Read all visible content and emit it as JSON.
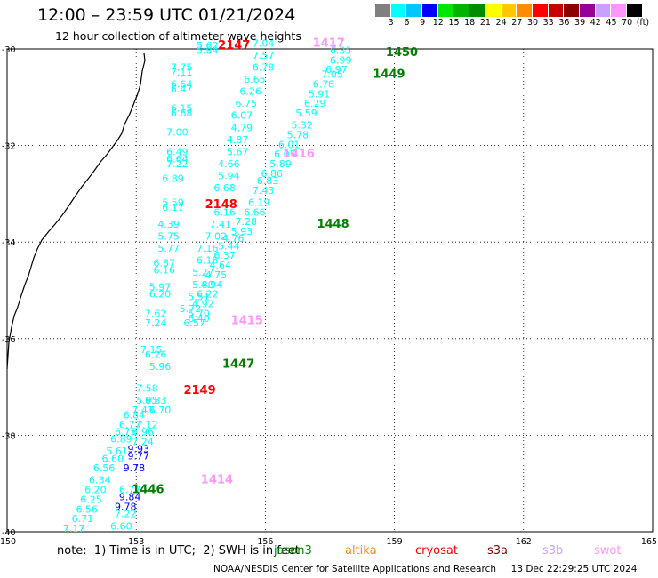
{
  "title": "12:00 – 23:59 UTC 01/21/2024",
  "subtitle": "12 hour collection of altimeter wave heights",
  "colorbar": {
    "labels": [
      "3",
      "6",
      "9",
      "12",
      "15",
      "18",
      "21",
      "24",
      "27",
      "30",
      "33",
      "36",
      "39",
      "42",
      "45",
      "70"
    ],
    "unit": "(ft)",
    "colors": [
      "#808080",
      "#00ffff",
      "#00c8ff",
      "#0000ff",
      "#00e600",
      "#00b400",
      "#008c00",
      "#ffff00",
      "#ffc800",
      "#ff8c00",
      "#ff0000",
      "#c80000",
      "#8c0000",
      "#960096",
      "#c8a0ff",
      "#ff96ff",
      "#000000"
    ]
  },
  "axes": {
    "lon_labels": [
      "150",
      "153",
      "156",
      "159",
      "162",
      "165"
    ],
    "lat_labels": [
      "-30",
      "-32",
      "-34",
      "-36",
      "-38",
      "-40"
    ]
  },
  "note": "note:  1) Time is in UTC;  2) SWH is in feet",
  "satellites": [
    {
      "name": "jason3",
      "color": "#008000"
    },
    {
      "name": "altika",
      "color": "#ff8c00"
    },
    {
      "name": "cryosat",
      "color": "#ff0000"
    },
    {
      "name": "s3a",
      "color": "#8b0000"
    },
    {
      "name": "s3b",
      "color": "#c8a0ff"
    },
    {
      "name": "swot",
      "color": "#ff96ff"
    }
  ],
  "credit": "NOAA/NESDIS Center for Satellite Applications and Research     13 Dec 22:29:25 UTC 2024",
  "time_labels": [
    {
      "text": "2147",
      "color": "#ff0000",
      "lon": 154.9,
      "lat": -30.0
    },
    {
      "text": "1417",
      "color": "#ff96ff",
      "lon": 157.1,
      "lat": -29.95
    },
    {
      "text": "1450",
      "color": "#008000",
      "lon": 158.8,
      "lat": -30.15
    },
    {
      "text": "1449",
      "color": "#008000",
      "lon": 158.5,
      "lat": -30.6
    },
    {
      "text": "1416",
      "color": "#ff96ff",
      "lon": 156.4,
      "lat": -32.25
    },
    {
      "text": "2148",
      "color": "#ff0000",
      "lon": 154.6,
      "lat": -33.3
    },
    {
      "text": "1448",
      "color": "#008000",
      "lon": 157.2,
      "lat": -33.7
    },
    {
      "text": "1415",
      "color": "#ff96ff",
      "lon": 155.2,
      "lat": -35.7
    },
    {
      "text": "1447",
      "color": "#008000",
      "lon": 155.0,
      "lat": -36.6
    },
    {
      "text": "2149",
      "color": "#ff0000",
      "lon": 154.1,
      "lat": -37.15
    },
    {
      "text": "1414",
      "color": "#ff96ff",
      "lon": 154.5,
      "lat": -39.0
    },
    {
      "text": "1446",
      "color": "#008000",
      "lon": 152.9,
      "lat": -39.2
    }
  ],
  "wave_heights": [
    {
      "v": "5.62",
      "lon": 154.4,
      "lat": -30.0,
      "c": "#00ffff"
    },
    {
      "v": "5.84",
      "lon": 154.4,
      "lat": -30.1,
      "c": "#00ffff"
    },
    {
      "v": "7.04",
      "lon": 155.7,
      "lat": -29.95,
      "c": "#00ffff"
    },
    {
      "v": "7.57",
      "lon": 155.7,
      "lat": -30.2,
      "c": "#00ffff"
    },
    {
      "v": "6.78",
      "lon": 155.7,
      "lat": -30.45,
      "c": "#00ffff"
    },
    {
      "v": "6.65",
      "lon": 155.5,
      "lat": -30.7,
      "c": "#00ffff"
    },
    {
      "v": "6.26",
      "lon": 155.4,
      "lat": -30.95,
      "c": "#00ffff"
    },
    {
      "v": "6.75",
      "lon": 155.3,
      "lat": -31.2,
      "c": "#00ffff"
    },
    {
      "v": "6.07",
      "lon": 155.2,
      "lat": -31.45,
      "c": "#00ffff"
    },
    {
      "v": "4.79",
      "lon": 155.2,
      "lat": -31.7,
      "c": "#00ffff"
    },
    {
      "v": "4.87",
      "lon": 155.1,
      "lat": -31.95,
      "c": "#00ffff"
    },
    {
      "v": "5.67",
      "lon": 155.1,
      "lat": -32.2,
      "c": "#00ffff"
    },
    {
      "v": "4.66",
      "lon": 154.9,
      "lat": -32.45,
      "c": "#00ffff"
    },
    {
      "v": "5.94",
      "lon": 154.9,
      "lat": -32.7,
      "c": "#00ffff"
    },
    {
      "v": "6.68",
      "lon": 154.8,
      "lat": -32.95,
      "c": "#00ffff"
    },
    {
      "v": "6.16",
      "lon": 154.8,
      "lat": -33.45,
      "c": "#00ffff"
    },
    {
      "v": "7.41",
      "lon": 154.7,
      "lat": -33.7,
      "c": "#00ffff"
    },
    {
      "v": "7.02",
      "lon": 154.6,
      "lat": -33.95,
      "c": "#00ffff"
    },
    {
      "v": "7.16",
      "lon": 154.4,
      "lat": -34.2,
      "c": "#00ffff"
    },
    {
      "v": "6.16",
      "lon": 154.4,
      "lat": -34.45,
      "c": "#00ffff"
    },
    {
      "v": "5.27",
      "lon": 154.3,
      "lat": -34.7,
      "c": "#00ffff"
    },
    {
      "v": "5.80",
      "lon": 154.3,
      "lat": -34.95,
      "c": "#00ffff"
    },
    {
      "v": "5.51",
      "lon": 154.2,
      "lat": -35.2,
      "c": "#00ffff"
    },
    {
      "v": "5.72",
      "lon": 154.0,
      "lat": -35.45,
      "c": "#00ffff"
    },
    {
      "v": "5.70",
      "lon": 154.2,
      "lat": -35.55,
      "c": "#00ffff"
    },
    {
      "v": "6.57",
      "lon": 154.1,
      "lat": -35.75,
      "c": "#00ffff"
    },
    {
      "v": "7.75",
      "lon": 153.8,
      "lat": -30.45,
      "c": "#00ffff"
    },
    {
      "v": "7.11",
      "lon": 153.8,
      "lat": -30.55,
      "c": "#00ffff"
    },
    {
      "v": "6.64",
      "lon": 153.8,
      "lat": -30.8,
      "c": "#00ffff"
    },
    {
      "v": "6.47",
      "lon": 153.8,
      "lat": -30.9,
      "c": "#00ffff"
    },
    {
      "v": "6.15",
      "lon": 153.8,
      "lat": -31.3,
      "c": "#00ffff"
    },
    {
      "v": "6.68",
      "lon": 153.8,
      "lat": -31.4,
      "c": "#00ffff"
    },
    {
      "v": "7.00",
      "lon": 153.7,
      "lat": -31.8,
      "c": "#00ffff"
    },
    {
      "v": "6.49",
      "lon": 153.7,
      "lat": -32.2,
      "c": "#00ffff"
    },
    {
      "v": "6.64",
      "lon": 153.7,
      "lat": -32.35,
      "c": "#00ffff"
    },
    {
      "v": "7.22",
      "lon": 153.7,
      "lat": -32.45,
      "c": "#00ffff"
    },
    {
      "v": "6.89",
      "lon": 153.6,
      "lat": -32.75,
      "c": "#00ffff"
    },
    {
      "v": "5.59",
      "lon": 153.6,
      "lat": -33.25,
      "c": "#00ffff"
    },
    {
      "v": "6.17",
      "lon": 153.6,
      "lat": -33.35,
      "c": "#00ffff"
    },
    {
      "v": "4.39",
      "lon": 153.5,
      "lat": -33.7,
      "c": "#00ffff"
    },
    {
      "v": "5.75",
      "lon": 153.5,
      "lat": -33.95,
      "c": "#00ffff"
    },
    {
      "v": "5.77",
      "lon": 153.5,
      "lat": -34.2,
      "c": "#00ffff"
    },
    {
      "v": "6.87",
      "lon": 153.4,
      "lat": -34.5,
      "c": "#00ffff"
    },
    {
      "v": "6.16",
      "lon": 153.4,
      "lat": -34.65,
      "c": "#00ffff"
    },
    {
      "v": "5.97",
      "lon": 153.3,
      "lat": -35.0,
      "c": "#00ffff"
    },
    {
      "v": "6.20",
      "lon": 153.3,
      "lat": -35.15,
      "c": "#00ffff"
    },
    {
      "v": "7.62",
      "lon": 153.2,
      "lat": -35.55,
      "c": "#00ffff"
    },
    {
      "v": "7.24",
      "lon": 153.2,
      "lat": -35.75,
      "c": "#00ffff"
    },
    {
      "v": "7.15",
      "lon": 153.1,
      "lat": -36.3,
      "c": "#00ffff"
    },
    {
      "v": "6.26",
      "lon": 153.2,
      "lat": -36.4,
      "c": "#00ffff"
    },
    {
      "v": "5.96",
      "lon": 153.3,
      "lat": -36.65,
      "c": "#00ffff"
    },
    {
      "v": "7.58",
      "lon": 153.0,
      "lat": -37.1,
      "c": "#00ffff"
    },
    {
      "v": "5.95",
      "lon": 153.0,
      "lat": -37.35,
      "c": "#00ffff"
    },
    {
      "v": "6.83",
      "lon": 153.2,
      "lat": -37.35,
      "c": "#00ffff"
    },
    {
      "v": "6.70",
      "lon": 153.3,
      "lat": -37.55,
      "c": "#00ffff"
    },
    {
      "v": "7.43",
      "lon": 152.9,
      "lat": -37.55,
      "c": "#00ffff"
    },
    {
      "v": "6.84",
      "lon": 152.7,
      "lat": -37.65,
      "c": "#00ffff"
    },
    {
      "v": "6.77",
      "lon": 152.6,
      "lat": -37.85,
      "c": "#00ffff"
    },
    {
      "v": "7.12",
      "lon": 153.0,
      "lat": -37.85,
      "c": "#00ffff"
    },
    {
      "v": "6.75",
      "lon": 152.5,
      "lat": -38.0,
      "c": "#00ffff"
    },
    {
      "v": "6.96",
      "lon": 152.9,
      "lat": -38.0,
      "c": "#00ffff"
    },
    {
      "v": "6.89",
      "lon": 152.4,
      "lat": -38.15,
      "c": "#00ffff"
    },
    {
      "v": "7.24",
      "lon": 152.9,
      "lat": -38.2,
      "c": "#00ffff"
    },
    {
      "v": "5.61",
      "lon": 152.3,
      "lat": -38.4,
      "c": "#00ffff"
    },
    {
      "v": "9.93",
      "lon": 152.8,
      "lat": -38.35,
      "c": "#0000ff"
    },
    {
      "v": "6.60",
      "lon": 152.2,
      "lat": -38.55,
      "c": "#00ffff"
    },
    {
      "v": "9.77",
      "lon": 152.8,
      "lat": -38.5,
      "c": "#0000ff"
    },
    {
      "v": "6.56",
      "lon": 152.0,
      "lat": -38.75,
      "c": "#00ffff"
    },
    {
      "v": "9.78",
      "lon": 152.7,
      "lat": -38.75,
      "c": "#0000ff"
    },
    {
      "v": "6.34",
      "lon": 151.9,
      "lat": -39.0,
      "c": "#00ffff"
    },
    {
      "v": "6.20",
      "lon": 151.8,
      "lat": -39.2,
      "c": "#00ffff"
    },
    {
      "v": "6.77",
      "lon": 152.6,
      "lat": -39.2,
      "c": "#00ffff"
    },
    {
      "v": "6.25",
      "lon": 151.7,
      "lat": -39.4,
      "c": "#00ffff"
    },
    {
      "v": "9.84",
      "lon": 152.6,
      "lat": -39.35,
      "c": "#0000ff"
    },
    {
      "v": "6.56",
      "lon": 151.6,
      "lat": -39.6,
      "c": "#00ffff"
    },
    {
      "v": "9.78",
      "lon": 152.5,
      "lat": -39.55,
      "c": "#0000ff"
    },
    {
      "v": "6.71",
      "lon": 151.5,
      "lat": -39.8,
      "c": "#00ffff"
    },
    {
      "v": "7.22",
      "lon": 152.5,
      "lat": -39.7,
      "c": "#00ffff"
    },
    {
      "v": "7.17",
      "lon": 151.3,
      "lat": -40.0,
      "c": "#00ffff"
    },
    {
      "v": "6.60",
      "lon": 152.4,
      "lat": -39.95,
      "c": "#00ffff"
    },
    {
      "v": "6.35",
      "lon": 157.5,
      "lat": -30.1,
      "c": "#00ffff"
    },
    {
      "v": "6.99",
      "lon": 157.5,
      "lat": -30.3,
      "c": "#00ffff"
    },
    {
      "v": "6.97",
      "lon": 157.4,
      "lat": -30.5,
      "c": "#00ffff"
    },
    {
      "v": "7.05",
      "lon": 157.3,
      "lat": -30.6,
      "c": "#00ffff"
    },
    {
      "v": "6.78",
      "lon": 157.1,
      "lat": -30.8,
      "c": "#00ffff"
    },
    {
      "v": "5.91",
      "lon": 157.0,
      "lat": -31.0,
      "c": "#00ffff"
    },
    {
      "v": "6.29",
      "lon": 156.9,
      "lat": -31.2,
      "c": "#00ffff"
    },
    {
      "v": "5.59",
      "lon": 156.7,
      "lat": -31.4,
      "c": "#00ffff"
    },
    {
      "v": "5.32",
      "lon": 156.6,
      "lat": -31.65,
      "c": "#00ffff"
    },
    {
      "v": "5.78",
      "lon": 156.5,
      "lat": -31.85,
      "c": "#00ffff"
    },
    {
      "v": "6.01",
      "lon": 156.3,
      "lat": -32.05,
      "c": "#00ffff"
    },
    {
      "v": "6.05",
      "lon": 156.2,
      "lat": -32.25,
      "c": "#00ffff"
    },
    {
      "v": "5.89",
      "lon": 156.1,
      "lat": -32.45,
      "c": "#00ffff"
    },
    {
      "v": "6.86",
      "lon": 155.9,
      "lat": -32.65,
      "c": "#00ffff"
    },
    {
      "v": "6.83",
      "lon": 155.8,
      "lat": -32.8,
      "c": "#00ffff"
    },
    {
      "v": "7.43",
      "lon": 155.7,
      "lat": -33.0,
      "c": "#00ffff"
    },
    {
      "v": "6.19",
      "lon": 155.6,
      "lat": -33.25,
      "c": "#00ffff"
    },
    {
      "v": "6.66",
      "lon": 155.5,
      "lat": -33.45,
      "c": "#00ffff"
    },
    {
      "v": "7.28",
      "lon": 155.3,
      "lat": -33.65,
      "c": "#00ffff"
    },
    {
      "v": "5.93",
      "lon": 155.2,
      "lat": -33.85,
      "c": "#00ffff"
    },
    {
      "v": "4.76",
      "lon": 155.0,
      "lat": -34.0,
      "c": "#00ffff"
    },
    {
      "v": "5.44",
      "lon": 154.9,
      "lat": -34.15,
      "c": "#00ffff"
    },
    {
      "v": "6.37",
      "lon": 154.8,
      "lat": -34.35,
      "c": "#00ffff"
    },
    {
      "v": "4.64",
      "lon": 154.7,
      "lat": -34.55,
      "c": "#00ffff"
    },
    {
      "v": "4.75",
      "lon": 154.6,
      "lat": -34.75,
      "c": "#00ffff"
    },
    {
      "v": "4.94",
      "lon": 154.5,
      "lat": -34.95,
      "c": "#00ffff"
    },
    {
      "v": "6.22",
      "lon": 154.4,
      "lat": -35.15,
      "c": "#00ffff"
    },
    {
      "v": "4.92",
      "lon": 154.3,
      "lat": -35.35,
      "c": "#00ffff"
    },
    {
      "v": "6.40",
      "lon": 154.2,
      "lat": -35.65,
      "c": "#00ffff"
    }
  ]
}
